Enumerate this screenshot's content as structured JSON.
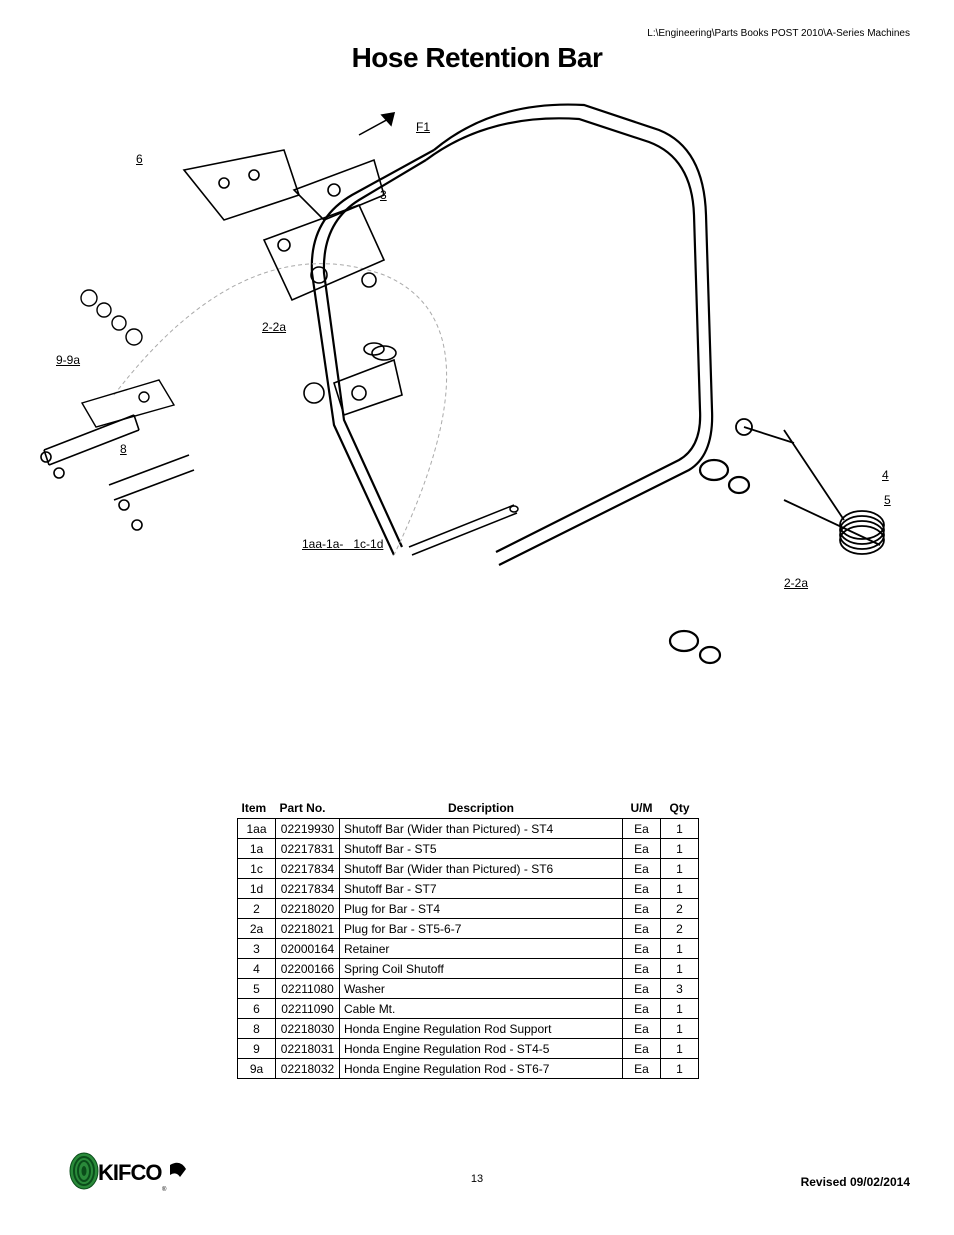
{
  "header_path": "L:\\Engineering\\Parts Books POST 2010\\A-Series Machines",
  "title": "Hose Retention Bar",
  "callouts": {
    "f1": "F1",
    "c6": "6",
    "c3": "3",
    "c2_2a_left": "2-2a",
    "c9_9a": "9-9a",
    "c8": "8",
    "c1aa": "1aa-1a-   1c-1d",
    "c4": "4",
    "c5": "5",
    "c2_2a_right": "2-2a"
  },
  "table": {
    "headers": {
      "item": "Item",
      "part_no": "Part No.",
      "description": "Description",
      "um": "U/M",
      "qty": "Qty"
    },
    "rows": [
      {
        "item": "1aa",
        "part_no": "02219930",
        "description": "Shutoff Bar (Wider than Pictured) - ST4",
        "um": "Ea",
        "qty": "1"
      },
      {
        "item": "1a",
        "part_no": "02217831",
        "description": "Shutoff Bar - ST5",
        "um": "Ea",
        "qty": "1"
      },
      {
        "item": "1c",
        "part_no": "02217834",
        "description": "Shutoff Bar (Wider than Pictured) - ST6",
        "um": "Ea",
        "qty": "1"
      },
      {
        "item": "1d",
        "part_no": "02217834",
        "description": "Shutoff Bar - ST7",
        "um": "Ea",
        "qty": "1"
      },
      {
        "item": "2",
        "part_no": "02218020",
        "description": "Plug for Bar - ST4",
        "um": "Ea",
        "qty": "2"
      },
      {
        "item": "2a",
        "part_no": "02218021",
        "description": "Plug for Bar - ST5-6-7",
        "um": "Ea",
        "qty": "2"
      },
      {
        "item": "3",
        "part_no": "02000164",
        "description": "Retainer",
        "um": "Ea",
        "qty": "1"
      },
      {
        "item": "4",
        "part_no": "02200166",
        "description": "Spring Coil Shutoff",
        "um": "Ea",
        "qty": "1"
      },
      {
        "item": "5",
        "part_no": "02211080",
        "description": "Washer",
        "um": "Ea",
        "qty": "3"
      },
      {
        "item": "6",
        "part_no": "02211090",
        "description": "Cable Mt.",
        "um": "Ea",
        "qty": "1"
      },
      {
        "item": "8",
        "part_no": "02218030",
        "description": "Honda Engine Regulation Rod Support",
        "um": "Ea",
        "qty": "1"
      },
      {
        "item": "9",
        "part_no": "02218031",
        "description": "Honda Engine Regulation Rod - ST4-5",
        "um": "Ea",
        "qty": "1"
      },
      {
        "item": "9a",
        "part_no": "02218032",
        "description": "Honda Engine Regulation Rod - ST6-7",
        "um": "Ea",
        "qty": "1"
      }
    ]
  },
  "page_number": "13",
  "revised": "Revised 09/02/2014",
  "logo_text": "KIFCO",
  "colors": {
    "logo_green": "#2a8a3a",
    "logo_dark": "#0a4d1a",
    "black": "#000000"
  }
}
